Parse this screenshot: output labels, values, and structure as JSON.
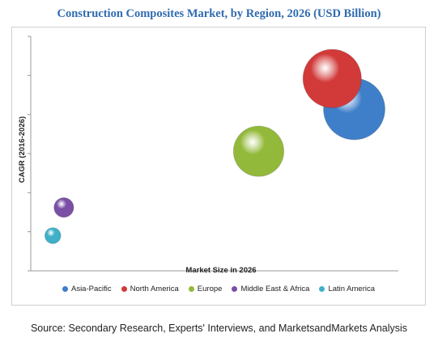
{
  "chart_data": {
    "type": "scatter",
    "title": "Construction Composites Market, by Region, 2026 (USD Billion)",
    "xlabel": "Market Size in 2026",
    "ylabel": "CAGR (2016-2026)",
    "grid": false,
    "legend_position": "bottom",
    "series": [
      {
        "name": "Asia-Pacific",
        "x": 0.88,
        "y": 0.69,
        "size": 1.0,
        "color": "#3f7fc9"
      },
      {
        "name": "North America",
        "x": 0.82,
        "y": 0.82,
        "size": 0.95,
        "color": "#d23a3a"
      },
      {
        "name": "Europe",
        "x": 0.62,
        "y": 0.51,
        "size": 0.82,
        "color": "#93b93a"
      },
      {
        "name": "Middle East & Africa",
        "x": 0.09,
        "y": 0.27,
        "size": 0.32,
        "color": "#7b4fa6"
      },
      {
        "name": "Latin America",
        "x": 0.06,
        "y": 0.15,
        "size": 0.26,
        "color": "#3fb0c8"
      }
    ]
  },
  "source_note": "Source: Secondary Research, Experts' Interviews, and MarketsandMarkets Analysis"
}
